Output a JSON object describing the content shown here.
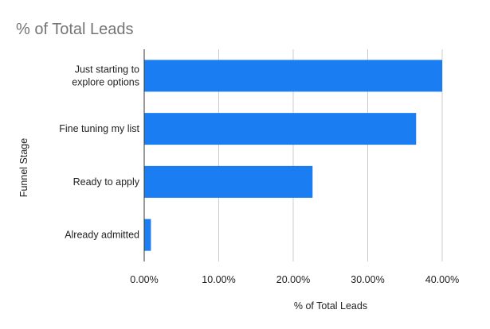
{
  "chart_data": {
    "type": "bar",
    "orientation": "horizontal",
    "title": "% of Total Leads",
    "xlabel": "% of Total Leads",
    "ylabel": "Funnel Stage",
    "categories": [
      [
        "Just starting to",
        "explore options"
      ],
      [
        "Fine tuning my list"
      ],
      [
        "Ready to apply"
      ],
      [
        "Already admitted"
      ]
    ],
    "values": [
      40.0,
      36.5,
      22.6,
      0.9
    ],
    "xlim": [
      0,
      40
    ],
    "xticks": [
      0,
      10,
      20,
      30,
      40
    ],
    "xtick_labels": [
      "0.00%",
      "10.00%",
      "20.00%",
      "30.00%",
      "40.00%"
    ],
    "grid": "vertical",
    "legend": "none",
    "bar_color": "#1a7ef2",
    "grid_color": "#cccccc",
    "axis_color": "#333333",
    "title_color": "#757575"
  }
}
